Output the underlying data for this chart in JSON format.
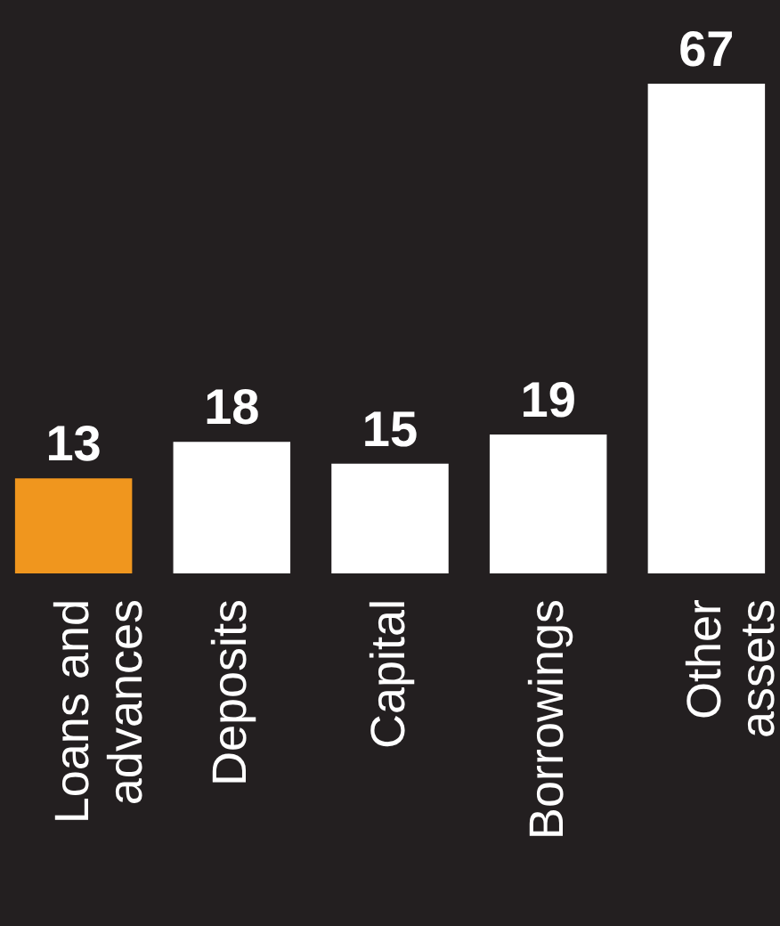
{
  "chart_data": {
    "type": "bar",
    "categories": [
      "Loans and advances",
      "Deposits",
      "Capital",
      "Borrowings",
      "Other assets"
    ],
    "values": [
      13,
      18,
      15,
      19,
      67
    ],
    "colors": [
      "#f0961e",
      "#ffffff",
      "#ffffff",
      "#ffffff",
      "#ffffff"
    ],
    "data_labels": true
  }
}
